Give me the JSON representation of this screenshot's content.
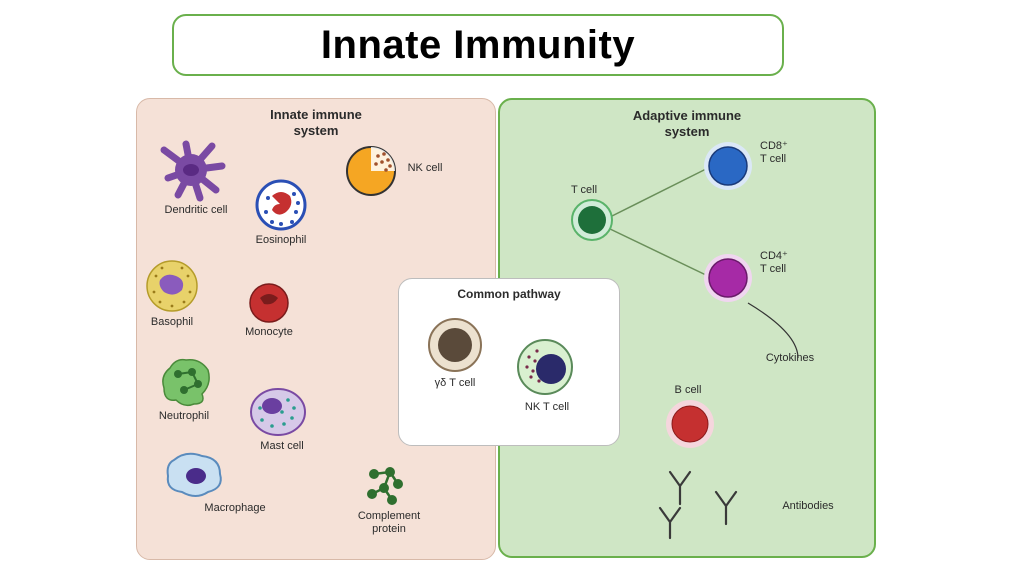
{
  "title": "Innate Immunity",
  "title_border": "#6ab04c",
  "title_bg": "#ffffff",
  "title_color": "#000000",
  "panels": {
    "innate": {
      "title": "Innate immune\nsystem",
      "bg": "#f5e1d7",
      "border": "#d8b9a8"
    },
    "adaptive": {
      "title": "Adaptive immune\nsystem",
      "bg": "#cfe6c5",
      "border": "#6ab04c"
    },
    "common": {
      "title": "Common pathway",
      "bg": "#ffffff",
      "border": "#bdbdbd"
    }
  },
  "label_color": "#2b2b2b",
  "cells": {
    "dendritic": {
      "label": "Dendritic cell",
      "color": "#7a4aa3"
    },
    "eosinophil": {
      "label": "Eosinophil",
      "ring": "#2a4fb5",
      "nucleus": "#c53030",
      "dots": "#2a4fb5",
      "body": "#ffffff"
    },
    "nk": {
      "label": "NK cell",
      "body": "#f5a623",
      "dots": "#a0522d",
      "ring": "#333333"
    },
    "basophil": {
      "label": "Basophil",
      "body": "#e8d26a",
      "nucleus": "#8a5bbd",
      "dots": "#9a7c1a"
    },
    "monocyte": {
      "label": "Monocyte",
      "body": "#c53030",
      "nucleus": "#7a1c1c"
    },
    "neutrophil": {
      "label": "Neutrophil",
      "body": "#79c26a",
      "lobes": "#2f6f2f"
    },
    "mast": {
      "label": "Mast cell",
      "body": "#d6c9e8",
      "nucleus": "#6a3fa0",
      "dots": "#2a9d8f",
      "ring": "#7a4aa3"
    },
    "macrophage": {
      "label": "Macrophage",
      "body": "#c9e0f2",
      "nucleus": "#4a2c8a",
      "ring": "#5a8bbd"
    },
    "complement": {
      "label": "Complement\nprotein",
      "color": "#2f6f2f"
    },
    "gdt": {
      "label": "γδ T cell",
      "body": "#5a4a3a",
      "ring": "#8a7358",
      "outer": "#ece1cf"
    },
    "nkt": {
      "label": "NK T cell",
      "body": "#d9f0d0",
      "nucleus": "#2a2a6a",
      "dots": "#7a2a4a",
      "ring": "#5a8a5a"
    },
    "tcell": {
      "label": "T cell",
      "body": "#1e6f3a",
      "ring": "#5ab36a"
    },
    "cd8": {
      "label": "CD8⁺\nT cell",
      "body": "#2a68c4",
      "ring": "#1a3a7a"
    },
    "cd4": {
      "label": "CD4⁺\nT cell",
      "body": "#a62aa6",
      "ring": "#6a1a6a"
    },
    "bcell": {
      "label": "B cell",
      "body": "#c53030",
      "ring": "#e8a8b3",
      "outer": "#f5d6dd"
    },
    "cytokines": {
      "label": "Cytokines"
    },
    "antibodies": {
      "label": "Antibodies",
      "color": "#3a3a3a"
    }
  },
  "connector_color": "#6a8f5a"
}
